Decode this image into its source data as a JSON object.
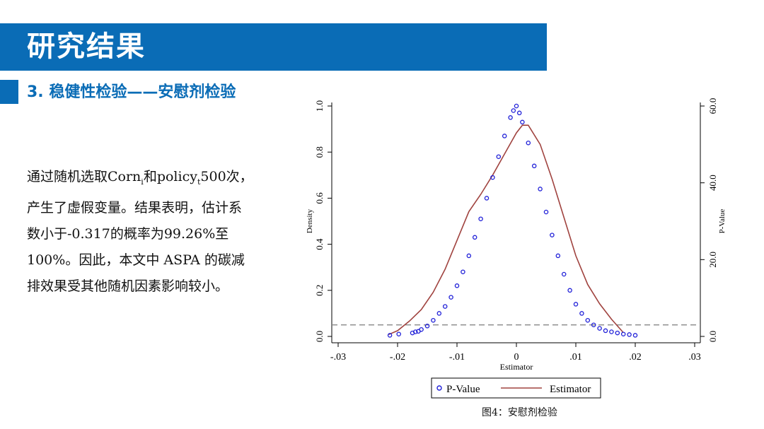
{
  "header": {
    "title": "研究结果"
  },
  "section": {
    "subtitle": "3. 稳健性检验——安慰剂检验"
  },
  "body": {
    "line1_a": "通过随机选取Corn",
    "line1_sub1": "i",
    "line1_b": "和policy",
    "line1_sub2": "t",
    "line1_c": "500次，",
    "line2": "产生了虚假变量。结果表明，估计系",
    "line3": "数小于-0.317的概率为99.26%至",
    "line4": "100%。因此，本文中 ASPA 的碳减",
    "line5": "排效果受其他随机因素影响较小。"
  },
  "caption": "图4：安慰剂检验",
  "chart_data": {
    "type": "scatter",
    "xlabel": "Estimator",
    "ylabel_left": "Density",
    "ylabel_right": "P-Value",
    "xlim": [
      -0.03,
      0.03
    ],
    "ylim_left": [
      0,
      1.0
    ],
    "ylim_right": [
      0,
      60
    ],
    "x_ticks": [
      "-.03",
      "-.02",
      "-.01",
      "0",
      ".01",
      ".02",
      ".03"
    ],
    "y_left_ticks": [
      "0.0",
      "0.2",
      "0.4",
      "0.6",
      "0.8",
      "1.0"
    ],
    "y_right_ticks": [
      "0.0",
      "20.0",
      "40.0",
      "60.0"
    ],
    "reference_line": {
      "axis": "left",
      "value": 0.05,
      "style": "dashed"
    },
    "legend": {
      "position": "bottom",
      "entries": [
        "P-Value",
        "Estimator"
      ]
    },
    "series": [
      {
        "name": "P-Value",
        "kind": "scatter",
        "axis": "left",
        "color": "#1f1fd8",
        "x": [
          -0.0213,
          -0.0198,
          -0.0175,
          -0.017,
          -0.0165,
          -0.016,
          -0.015,
          -0.014,
          -0.013,
          -0.012,
          -0.011,
          -0.01,
          -0.009,
          -0.008,
          -0.007,
          -0.006,
          -0.005,
          -0.004,
          -0.003,
          -0.002,
          -0.001,
          -0.0005,
          0.0,
          0.0005,
          0.001,
          0.002,
          0.003,
          0.004,
          0.005,
          0.006,
          0.007,
          0.008,
          0.009,
          0.01,
          0.011,
          0.012,
          0.013,
          0.014,
          0.015,
          0.016,
          0.017,
          0.018,
          0.019,
          0.02
        ],
        "y": [
          0.005,
          0.01,
          0.015,
          0.02,
          0.022,
          0.03,
          0.045,
          0.07,
          0.1,
          0.13,
          0.17,
          0.22,
          0.28,
          0.35,
          0.43,
          0.51,
          0.6,
          0.69,
          0.78,
          0.87,
          0.95,
          0.98,
          1.0,
          0.97,
          0.93,
          0.84,
          0.74,
          0.64,
          0.54,
          0.44,
          0.35,
          0.27,
          0.2,
          0.14,
          0.1,
          0.07,
          0.05,
          0.035,
          0.025,
          0.02,
          0.015,
          0.01,
          0.008,
          0.005
        ]
      },
      {
        "name": "Estimator",
        "kind": "line",
        "axis": "right",
        "color": "#a0433f",
        "x": [
          -0.0215,
          -0.02,
          -0.018,
          -0.016,
          -0.014,
          -0.012,
          -0.01,
          -0.008,
          -0.006,
          -0.004,
          -0.002,
          0.0,
          0.001,
          0.002,
          0.004,
          0.006,
          0.008,
          0.01,
          0.012,
          0.014,
          0.016,
          0.018
        ],
        "y": [
          0.5,
          1.5,
          4.0,
          7.0,
          11.5,
          17.5,
          25.0,
          32.5,
          37.0,
          42.0,
          47.5,
          53.0,
          55.0,
          55.0,
          50.0,
          41.0,
          31.0,
          21.0,
          13.5,
          8.5,
          4.5,
          1.0
        ]
      }
    ]
  }
}
